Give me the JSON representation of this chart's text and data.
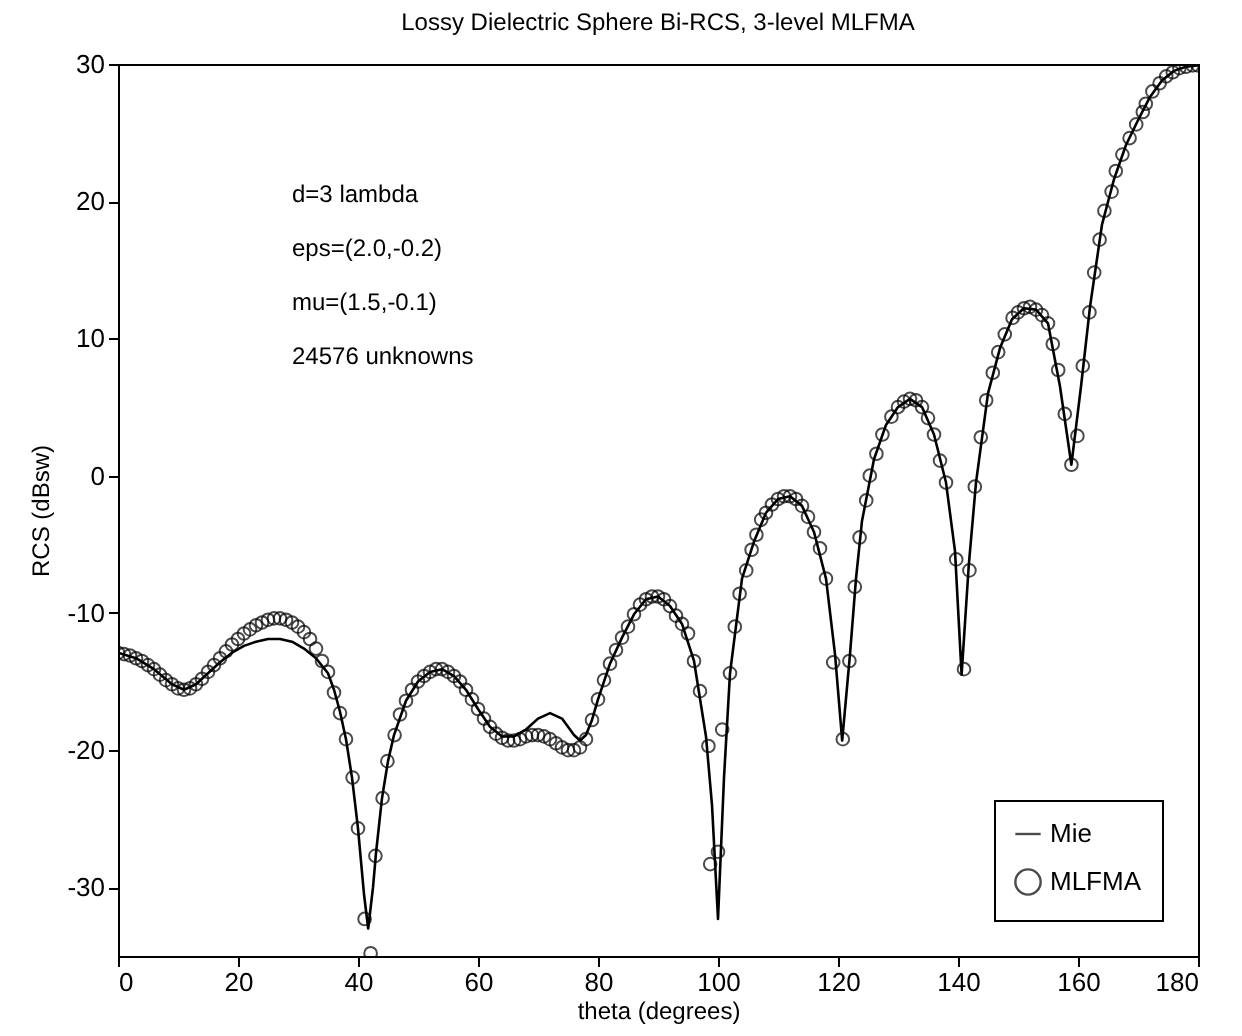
{
  "chart_data": {
    "type": "line",
    "title": "Lossy Dielectric Sphere Bi-RCS, 3-level MLFMA",
    "xlabel": "theta (degrees)",
    "ylabel": "RCS (dBsw)",
    "annotations": [
      "d=3 lambda",
      "eps=(2.0,-0.2)",
      "mu=(1.5,-0.1)",
      "24576 unknowns"
    ],
    "xlim": [
      0,
      180
    ],
    "xticks": [
      0,
      20,
      40,
      60,
      80,
      100,
      120,
      140,
      160,
      180
    ],
    "ylim": [
      -35,
      30
    ],
    "yticks": [
      -30,
      -20,
      -10,
      0,
      10,
      20,
      30
    ],
    "legend": "bottom right",
    "grid": false,
    "series": [
      {
        "name": "Mie",
        "color": "#000000",
        "line_style": "solid",
        "x": [
          0,
          3,
          6,
          9,
          11,
          13,
          15,
          17,
          19,
          21,
          23,
          25,
          27,
          29,
          31,
          33,
          35,
          36,
          37,
          38,
          39,
          40,
          41,
          41.7,
          42.5,
          43,
          44,
          45,
          46,
          48,
          50,
          52,
          54,
          56,
          58,
          60,
          62,
          64,
          66,
          68,
          70,
          72,
          74,
          76,
          77,
          78,
          79,
          80,
          82,
          84,
          86,
          88,
          90,
          92,
          94,
          96,
          98,
          99,
          100,
          101,
          102,
          104,
          106,
          108,
          110,
          112,
          114,
          116,
          118,
          119.5,
          120.7,
          122,
          123,
          124,
          126,
          128,
          130,
          132,
          134,
          136,
          138,
          139.5,
          140.6,
          141.8,
          143,
          145,
          147,
          149,
          151,
          153,
          155,
          157,
          158.9,
          160.5,
          162,
          164,
          166,
          168,
          170,
          172,
          174,
          176,
          178,
          180
        ],
        "values": [
          -12.9,
          -13.3,
          -14.1,
          -15.2,
          -15.6,
          -15.2,
          -14.4,
          -13.6,
          -12.9,
          -12.4,
          -12.1,
          -11.9,
          -11.9,
          -12.1,
          -12.6,
          -13.3,
          -14.4,
          -15.6,
          -17.2,
          -19.2,
          -22.0,
          -25.7,
          -30.5,
          -33.0,
          -30.0,
          -27.5,
          -23.5,
          -20.8,
          -18.9,
          -16.4,
          -15.0,
          -14.3,
          -14.1,
          -14.6,
          -15.6,
          -17.0,
          -18.3,
          -19.0,
          -19.0,
          -18.5,
          -17.7,
          -17.3,
          -17.7,
          -18.9,
          -19.3,
          -18.9,
          -17.8,
          -16.3,
          -13.7,
          -11.8,
          -10.1,
          -9.0,
          -8.8,
          -9.5,
          -10.8,
          -13.5,
          -19.0,
          -24.0,
          -32.3,
          -22.0,
          -14.4,
          -7.5,
          -4.8,
          -2.7,
          -1.7,
          -1.5,
          -2.2,
          -4.1,
          -7.5,
          -13.0,
          -19.3,
          -13.0,
          -7.5,
          -3.3,
          1.2,
          3.7,
          5.0,
          5.6,
          5.0,
          3.0,
          -0.5,
          -5.5,
          -14.5,
          -6.5,
          -0.5,
          6.0,
          9.3,
          11.4,
          12.2,
          12.1,
          11.1,
          6.5,
          0.8,
          6.5,
          12.3,
          18.3,
          21.6,
          24.1,
          25.9,
          27.6,
          28.8,
          29.5,
          29.8,
          29.9
        ]
      },
      {
        "name": "MLFMA",
        "type": "scatter",
        "color": "#000000",
        "marker": "circle",
        "x": [
          0,
          1,
          2,
          3,
          4,
          5,
          6,
          7,
          8,
          9,
          10,
          11,
          12,
          13,
          14,
          15,
          16,
          17,
          18,
          19,
          20,
          21,
          22,
          23,
          24,
          25,
          26,
          27,
          28,
          29,
          30,
          31,
          32,
          33,
          34,
          35,
          36,
          37,
          38,
          39.1,
          40,
          41.1,
          42.1,
          42.9,
          44.1,
          44.9,
          46.1,
          47,
          48,
          49,
          50,
          51,
          52,
          53,
          54,
          55,
          56,
          57,
          58,
          59,
          60,
          61,
          62,
          63,
          64,
          65,
          66,
          67,
          68,
          69,
          70,
          71,
          72,
          73,
          74,
          75,
          76,
          77,
          78,
          79,
          80,
          81,
          82,
          83,
          84,
          85,
          86,
          87,
          88,
          89,
          90,
          91,
          92,
          93,
          94,
          95,
          96,
          97,
          98.4,
          98.7,
          100,
          100.7,
          102,
          102.8,
          103.6,
          104.7,
          105.6,
          106.4,
          107.2,
          108,
          109,
          110,
          111,
          112,
          113,
          114,
          115,
          116,
          117,
          118,
          119.2,
          120.8,
          121.9,
          122.8,
          123.6,
          124.7,
          125.3,
          126.4,
          127.4,
          128.9,
          130,
          131,
          132,
          133,
          134,
          135,
          136,
          137,
          138,
          139.7,
          141,
          141.9,
          142.8,
          143.8,
          144.7,
          145.8,
          146.7,
          147.8,
          149.1,
          150,
          151,
          152,
          153,
          154,
          155,
          155.8,
          156.7,
          157.8,
          158.9,
          159.9,
          160.8,
          161.9,
          162.7,
          163.6,
          164.4,
          165.6,
          166.3,
          167.4,
          168.6,
          169.7,
          170.8,
          171.3,
          172.4,
          173.6,
          174.7,
          175.8,
          176.9,
          178,
          179.1,
          180
        ],
        "values": [
          -12.9,
          -13.0,
          -13.1,
          -13.3,
          -13.5,
          -13.8,
          -14.1,
          -14.5,
          -14.9,
          -15.2,
          -15.5,
          -15.6,
          -15.5,
          -15.2,
          -14.8,
          -14.3,
          -13.8,
          -13.3,
          -12.8,
          -12.3,
          -11.9,
          -11.5,
          -11.2,
          -10.9,
          -10.7,
          -10.5,
          -10.4,
          -10.4,
          -10.5,
          -10.7,
          -11.0,
          -11.4,
          -11.9,
          -12.6,
          -13.5,
          -14.3,
          -15.8,
          -17.3,
          -19.2,
          -22.0,
          -25.7,
          -32.3,
          -34.8,
          -27.7,
          -23.5,
          -20.8,
          -18.9,
          -17.4,
          -16.4,
          -15.6,
          -15.0,
          -14.6,
          -14.3,
          -14.1,
          -14.1,
          -14.3,
          -14.6,
          -15.0,
          -15.6,
          -16.3,
          -17.0,
          -17.7,
          -18.3,
          -18.8,
          -19.1,
          -19.3,
          -19.3,
          -19.2,
          -19.0,
          -18.9,
          -18.9,
          -19.0,
          -19.2,
          -19.5,
          -19.8,
          -20.0,
          -20.0,
          -19.8,
          -19.2,
          -17.8,
          -16.3,
          -14.9,
          -13.7,
          -12.7,
          -11.8,
          -11.0,
          -10.1,
          -9.4,
          -9.0,
          -8.8,
          -8.8,
          -9.0,
          -9.5,
          -10.2,
          -10.8,
          -11.5,
          -13.5,
          -15.7,
          -19.7,
          -28.3,
          -27.4,
          -18.5,
          -14.4,
          -11.0,
          -8.6,
          -6.9,
          -5.4,
          -4.3,
          -3.2,
          -2.7,
          -2.1,
          -1.7,
          -1.5,
          -1.5,
          -1.7,
          -2.2,
          -3.0,
          -4.1,
          -5.3,
          -7.5,
          -13.6,
          -19.2,
          -13.5,
          -8.1,
          -4.5,
          -1.8,
          0.0,
          1.6,
          3.0,
          4.3,
          5.0,
          5.4,
          5.6,
          5.5,
          5.0,
          4.2,
          3.0,
          1.1,
          -0.5,
          -6.1,
          -14.1,
          -6.9,
          -0.8,
          2.8,
          5.5,
          7.5,
          9.0,
          10.3,
          11.5,
          11.9,
          12.2,
          12.3,
          12.1,
          11.7,
          11.1,
          9.6,
          7.7,
          4.5,
          0.8,
          2.9,
          8.0,
          11.9,
          14.8,
          17.2,
          19.3,
          20.7,
          22.2,
          23.4,
          24.6,
          25.6,
          26.5,
          27.1,
          28.0,
          28.6,
          29.1,
          29.4,
          29.7,
          29.8,
          29.9,
          29.9
        ]
      }
    ]
  }
}
